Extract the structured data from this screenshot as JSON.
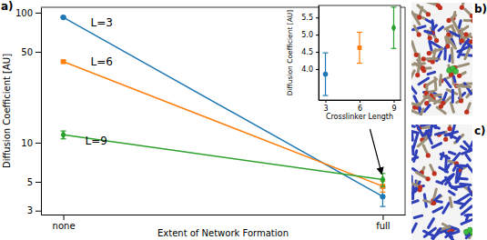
{
  "chart_data": [
    {
      "type": "line",
      "title": "a)",
      "x_label": "Extent of Network Formation",
      "y_label": "Diffusion Coefficient [AU]",
      "categories": [
        "none",
        "full"
      ],
      "log": "y",
      "ylim": [
        2.8,
        110
      ],
      "yticks": [
        3,
        5,
        10,
        50,
        100
      ],
      "series": [
        {
          "name": "L=3",
          "color": "#1f77b4",
          "marker": "circle",
          "values": [
            92,
            3.85
          ],
          "errors": [
            1.0,
            0.62
          ]
        },
        {
          "name": "L=6",
          "color": "#ff7f0e",
          "marker": "square",
          "values": [
            42,
            4.62
          ],
          "errors": [
            0.8,
            0.45
          ]
        },
        {
          "name": "L=9",
          "color": "#2ca02c",
          "marker": "diamond",
          "values": [
            11.5,
            5.2
          ],
          "errors": [
            0.8,
            0.6
          ]
        }
      ]
    },
    {
      "type": "scatter",
      "x_label": "Crosslinker Length",
      "y_label": "Diffusion Coefficient [AU]",
      "x": [
        3,
        6,
        9
      ],
      "xlim": [
        2.4,
        9.6
      ],
      "xticks": [
        3,
        6,
        9
      ],
      "ylim": [
        3.1,
        5.85
      ],
      "yticks": [
        {
          "value": 4,
          "label": "4.0"
        },
        {
          "value": 4.5,
          "label": "4.5"
        },
        {
          "value": 5,
          "label": "5.0"
        },
        {
          "value": 5.5,
          "label": "5.5"
        }
      ],
      "series": [
        {
          "color": "#1f77b4",
          "marker": "circle",
          "values": [
            3.85,
            null,
            null
          ],
          "errors": [
            0.62,
            null,
            null
          ]
        },
        {
          "color": "#ff7f0e",
          "marker": "square",
          "values": [
            null,
            4.62,
            null
          ],
          "errors": [
            null,
            0.45,
            null
          ]
        },
        {
          "color": "#2ca02c",
          "marker": "diamond",
          "values": [
            null,
            null,
            5.2
          ],
          "errors": [
            null,
            null,
            0.6
          ]
        }
      ]
    }
  ],
  "panels": [
    {
      "label": "b)"
    },
    {
      "label": "c)"
    }
  ]
}
